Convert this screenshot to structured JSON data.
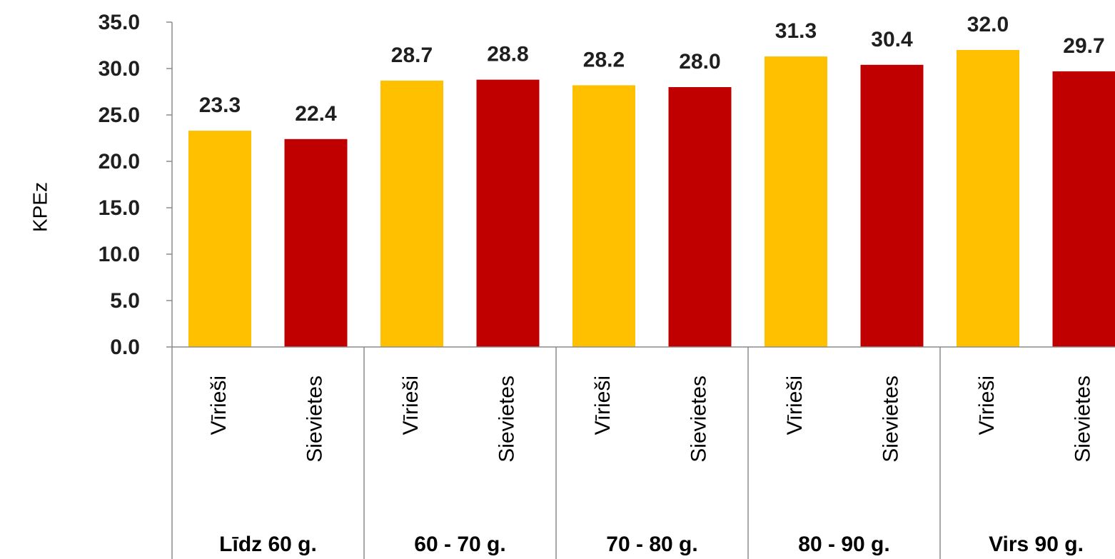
{
  "chart_data": {
    "type": "bar",
    "ylabel": "KPEz",
    "ylim": [
      0,
      35
    ],
    "y_ticks": [
      "0.0",
      "5.0",
      "10.0",
      "15.0",
      "20.0",
      "25.0",
      "30.0",
      "35.0"
    ],
    "groups": [
      "Līdz 60 g.",
      "60 - 70 g.",
      "70 - 80 g.",
      "80 - 90 g.",
      "Virs 90 g."
    ],
    "categories": [
      "Vīrieši",
      "Sievietes",
      "Vīrieši",
      "Sievietes",
      "Vīrieši",
      "Sievietes",
      "Vīrieši",
      "Sievietes",
      "Vīrieši",
      "Sievietes"
    ],
    "values": [
      23.3,
      22.4,
      28.7,
      28.8,
      28.2,
      28.0,
      31.3,
      30.4,
      32.0,
      29.7
    ],
    "value_labels": [
      "23.3",
      "22.4",
      "28.7",
      "28.8",
      "28.2",
      "28.0",
      "31.3",
      "30.4",
      "32.0",
      "29.7"
    ],
    "colors": {
      "Vīrieši": "#ffc000",
      "Sievietes": "#c00000"
    },
    "grid": false,
    "legend": "none"
  }
}
